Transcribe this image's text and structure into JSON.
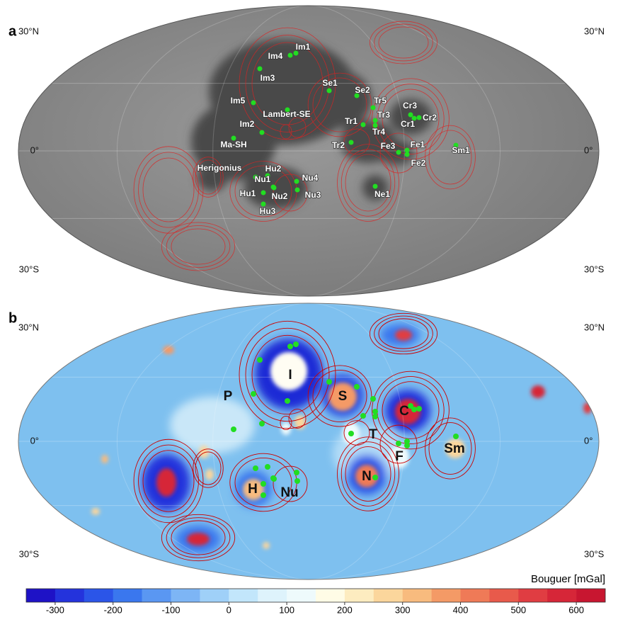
{
  "panel_a": {
    "label": "a",
    "lat_labels_left": [
      "30°N",
      "0°",
      "30°S"
    ],
    "lat_labels_right": [
      "30°N",
      "0°",
      "30°S"
    ],
    "sites": [
      "Im1",
      "Im4",
      "Im3",
      "Im5",
      "Se1",
      "Se2",
      "Tr5",
      "Cr3",
      "Cr2",
      "Cr1",
      "Tr3",
      "Lambert-SE",
      "Tr1",
      "Tr4",
      "Im2",
      "Ma-SH",
      "Tr2",
      "Fe3",
      "Fe1",
      "Sm1",
      "Fe2",
      "Herigonius",
      "Hu2",
      "Nu4",
      "Nu1",
      "Ne1",
      "Hu1",
      "Nu2",
      "Nu3",
      "Hu3"
    ]
  },
  "panel_b": {
    "label": "b",
    "lat_labels_left": [
      "30°N",
      "0°",
      "30°S"
    ],
    "lat_labels_right": [
      "30°N",
      "0°",
      "30°S"
    ],
    "basins": [
      "I",
      "P",
      "S",
      "C",
      "T",
      "F",
      "Sm",
      "N",
      "H",
      "Nu"
    ]
  },
  "colorbar": {
    "title": "Bouguer [mGal]",
    "lim": [
      -350,
      650
    ],
    "ticks": [
      -300,
      -200,
      -100,
      0,
      100,
      200,
      300,
      400,
      500,
      600
    ],
    "colors": [
      "#1e12c6",
      "#2433dc",
      "#2b55e8",
      "#3a77ee",
      "#5a97f2",
      "#7db5f5",
      "#9fd0f8",
      "#c2e6fb",
      "#def3fc",
      "#eefafc",
      "#fffce6",
      "#fdecc0",
      "#fbd69c",
      "#f8bb7e",
      "#f49a66",
      "#ef7a57",
      "#e85a4b",
      "#e03d42",
      "#d62638",
      "#c81630"
    ]
  }
}
